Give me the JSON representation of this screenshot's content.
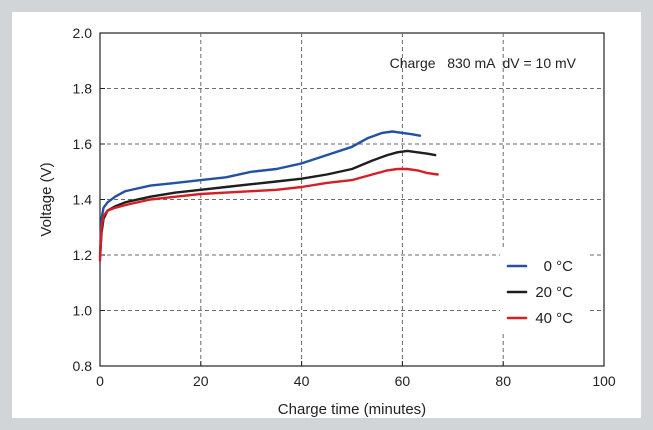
{
  "chart_data": {
    "type": "line",
    "title": "",
    "annotation": "Charge   830 mA  dV = 10 mV",
    "xlabel": "Charge time (minutes)",
    "ylabel": "Voltage (V)",
    "xlim": [
      0,
      100
    ],
    "ylim": [
      0.8,
      2.0
    ],
    "x_ticks": [
      0,
      20,
      40,
      60,
      80,
      100
    ],
    "x_tick_labels": [
      "0",
      "20",
      "40",
      "60",
      "80",
      "100"
    ],
    "y_ticks": [
      0.8,
      1.0,
      1.2,
      1.4,
      1.6,
      1.8,
      2.0
    ],
    "y_tick_labels": [
      "0.8",
      "1.0",
      "1.2",
      "1.4",
      "1.6",
      "1.8",
      "2.0"
    ],
    "grid": true,
    "legend_position": "right",
    "series": [
      {
        "name": "0 °C",
        "color": "#2451a3",
        "points": [
          [
            0,
            1.2
          ],
          [
            0.3,
            1.33
          ],
          [
            0.7,
            1.37
          ],
          [
            1.5,
            1.39
          ],
          [
            3,
            1.41
          ],
          [
            5,
            1.43
          ],
          [
            10,
            1.45
          ],
          [
            15,
            1.46
          ],
          [
            20,
            1.47
          ],
          [
            25,
            1.48
          ],
          [
            30,
            1.5
          ],
          [
            35,
            1.51
          ],
          [
            40,
            1.53
          ],
          [
            45,
            1.56
          ],
          [
            50,
            1.59
          ],
          [
            53,
            1.62
          ],
          [
            56,
            1.64
          ],
          [
            58,
            1.645
          ],
          [
            60,
            1.64
          ],
          [
            62,
            1.635
          ],
          [
            63.5,
            1.63
          ]
        ]
      },
      {
        "name": "20 °C",
        "color": "#1e1e1e",
        "points": [
          [
            0,
            1.19
          ],
          [
            0.3,
            1.28
          ],
          [
            0.7,
            1.33
          ],
          [
            1.5,
            1.36
          ],
          [
            3,
            1.375
          ],
          [
            5,
            1.39
          ],
          [
            10,
            1.41
          ],
          [
            15,
            1.425
          ],
          [
            20,
            1.435
          ],
          [
            25,
            1.445
          ],
          [
            30,
            1.455
          ],
          [
            35,
            1.465
          ],
          [
            40,
            1.475
          ],
          [
            45,
            1.49
          ],
          [
            50,
            1.51
          ],
          [
            54,
            1.54
          ],
          [
            57,
            1.56
          ],
          [
            59,
            1.57
          ],
          [
            61,
            1.575
          ],
          [
            63,
            1.57
          ],
          [
            65,
            1.565
          ],
          [
            66.5,
            1.56
          ]
        ]
      },
      {
        "name": "40 °C",
        "color": "#d51f27",
        "points": [
          [
            0,
            1.18
          ],
          [
            0.3,
            1.3
          ],
          [
            0.7,
            1.34
          ],
          [
            1.5,
            1.36
          ],
          [
            3,
            1.37
          ],
          [
            5,
            1.38
          ],
          [
            10,
            1.4
          ],
          [
            15,
            1.41
          ],
          [
            20,
            1.42
          ],
          [
            25,
            1.425
          ],
          [
            30,
            1.43
          ],
          [
            35,
            1.435
          ],
          [
            40,
            1.445
          ],
          [
            45,
            1.46
          ],
          [
            50,
            1.47
          ],
          [
            54,
            1.49
          ],
          [
            57,
            1.505
          ],
          [
            59,
            1.51
          ],
          [
            61,
            1.51
          ],
          [
            63,
            1.505
          ],
          [
            65,
            1.495
          ],
          [
            67,
            1.49
          ]
        ]
      }
    ]
  }
}
